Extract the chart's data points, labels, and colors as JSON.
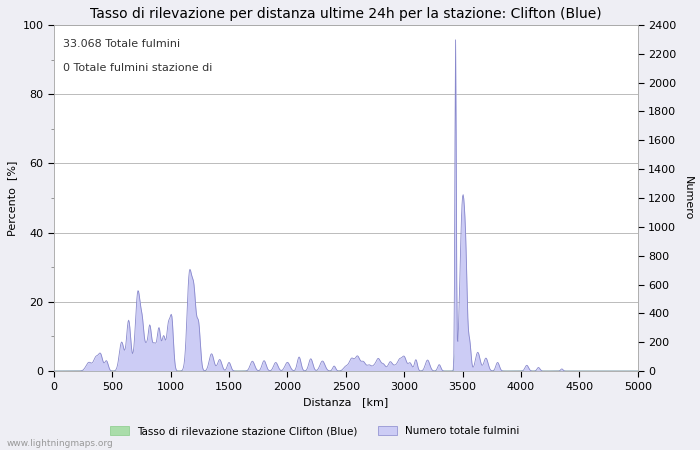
{
  "title": "Tasso di rilevazione per distanza ultime 24h per la stazione: Clifton (Blue)",
  "xlabel": "Distanza   [km]",
  "ylabel_left": "Percento  [%]",
  "ylabel_right": "Numero",
  "annotation_line1": "33.068 Totale fulmini",
  "annotation_line2": "0 Totale fulmini stazione di",
  "watermark": "www.lightningmaps.org",
  "xlim": [
    0,
    5000
  ],
  "ylim_left": [
    0,
    100
  ],
  "ylim_right": [
    0,
    2400
  ],
  "xticks": [
    0,
    500,
    1000,
    1500,
    2000,
    2500,
    3000,
    3500,
    4000,
    4500,
    5000
  ],
  "yticks_left": [
    0,
    20,
    40,
    60,
    80,
    100
  ],
  "yticks_right": [
    0,
    200,
    400,
    600,
    800,
    1000,
    1200,
    1400,
    1600,
    1800,
    2000,
    2200,
    2400
  ],
  "bg_color": "#eeeef4",
  "plot_bg_color": "#ffffff",
  "grid_color": "#bbbbbb",
  "fill_green_color": "#aaddaa",
  "fill_blue_color": "#ccccf5",
  "line_green_color": "#88cc88",
  "line_blue_color": "#8888cc",
  "legend_label_green": "Tasso di rilevazione stazione Clifton (Blue)",
  "legend_label_blue": "Numero totale fulmini",
  "title_fontsize": 10,
  "axis_fontsize": 8,
  "tick_fontsize": 8,
  "annotation_fontsize": 8
}
